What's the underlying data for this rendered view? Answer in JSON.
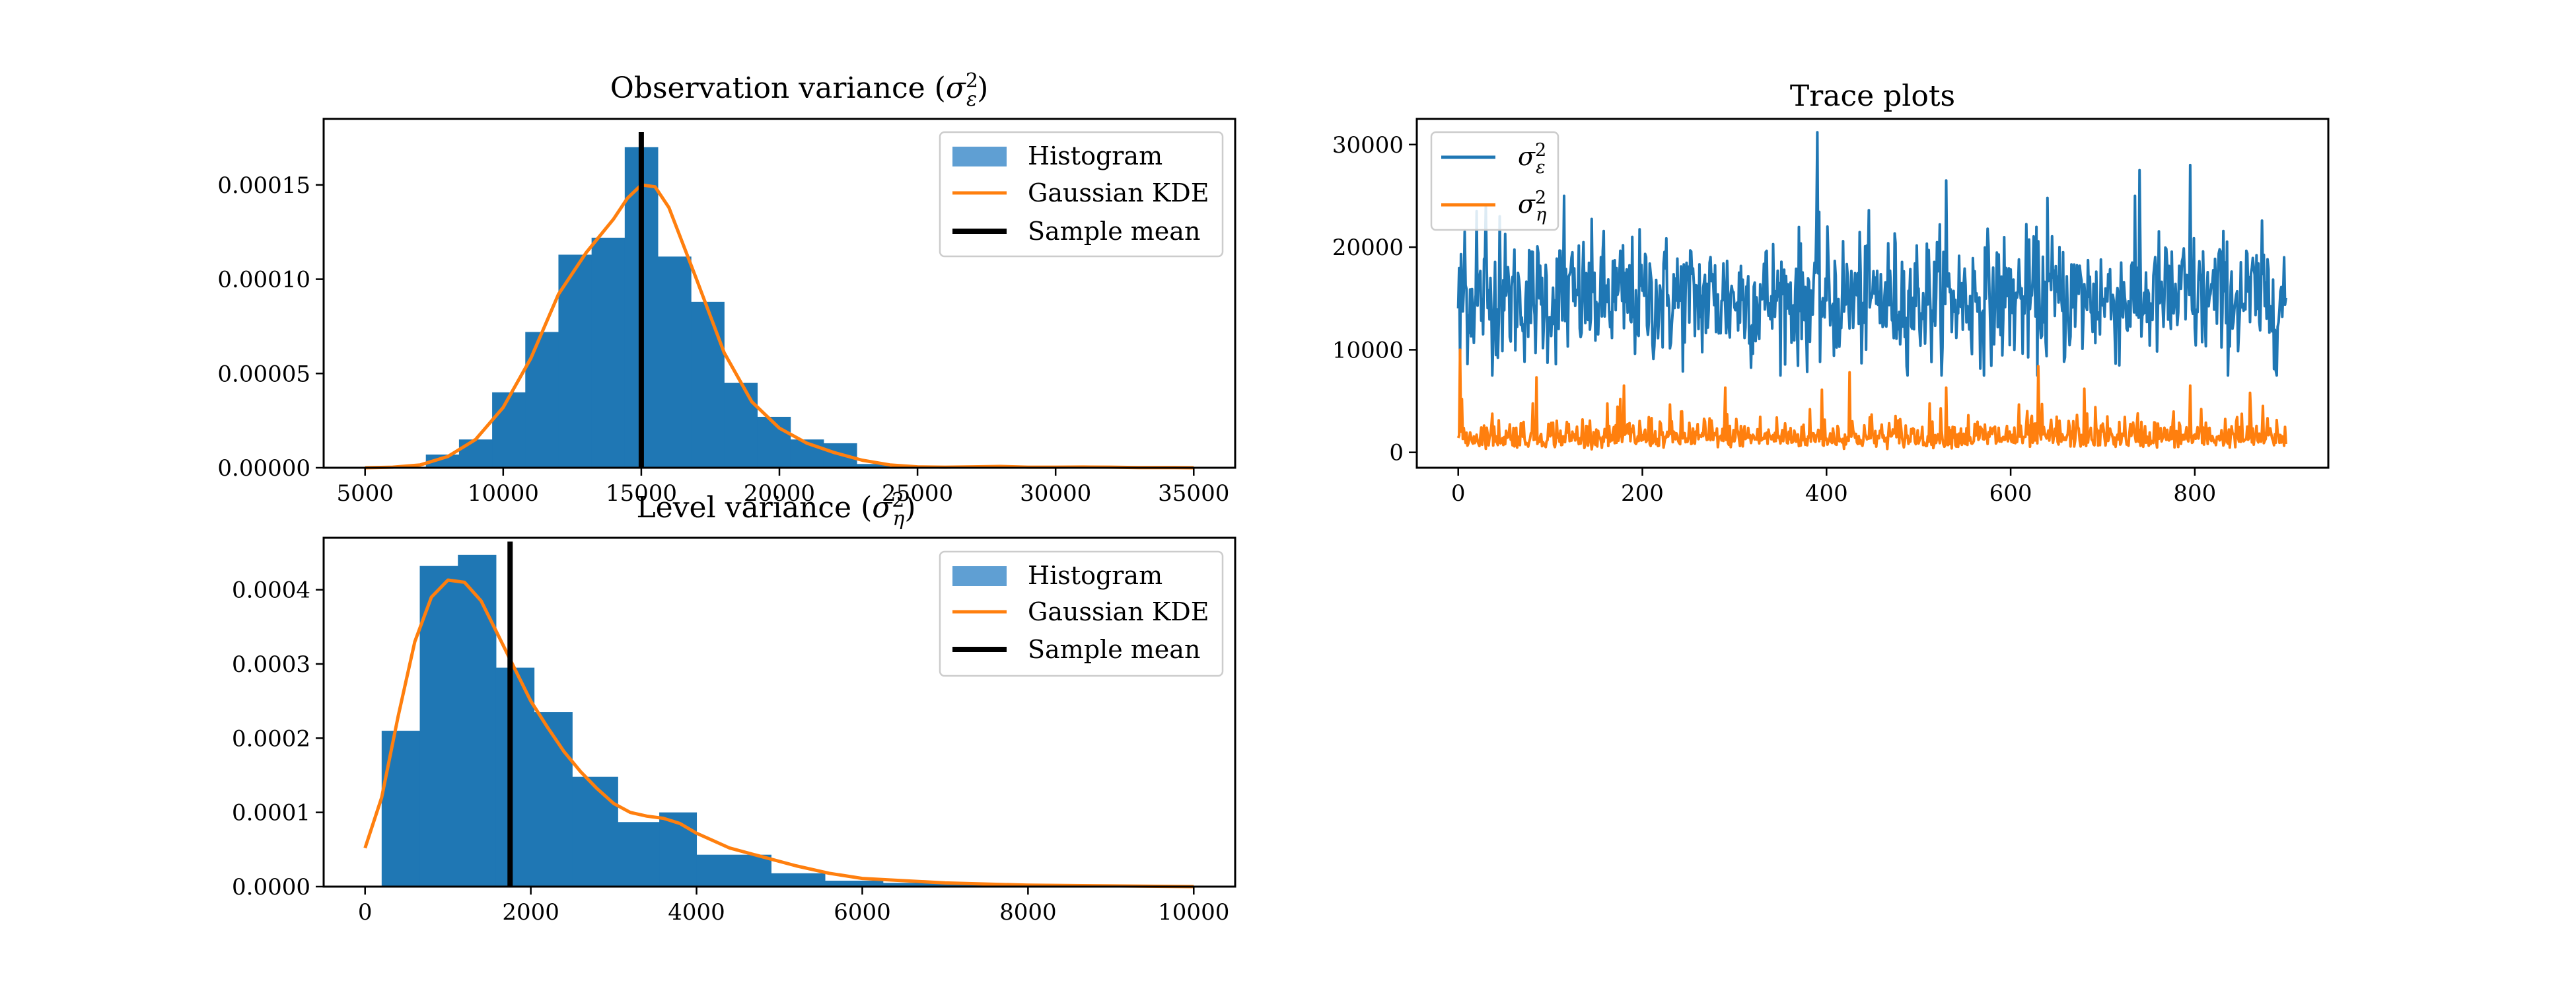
{
  "colors": {
    "hist": "#1f77b4",
    "kde": "#ff7f0e",
    "mean": "#000000",
    "legend_hist": "#5f9fd3"
  },
  "chart_data": [
    {
      "id": "obs",
      "type": "bar",
      "title": "Observation variance (σ²ε)",
      "title_main": "Observation variance (",
      "title_sym": "σ",
      "title_sup": "2",
      "title_sub": "ε",
      "title_end": ")",
      "xlabel": "",
      "ylabel": "",
      "xlim": [
        3500,
        36500
      ],
      "ylim": [
        0,
        0.000185
      ],
      "xticks": [
        5000,
        10000,
        15000,
        20000,
        25000,
        30000,
        35000
      ],
      "xtick_labels": [
        "5000",
        "10000",
        "15000",
        "20000",
        "25000",
        "30000",
        "35000"
      ],
      "yticks": [
        0,
        5e-05,
        0.0001,
        0.00015
      ],
      "ytick_labels": [
        "0.00000",
        "0.00005",
        "0.00010",
        "0.00015"
      ],
      "bins": [
        {
          "x0": 7200,
          "x1": 8400,
          "v": 7e-06
        },
        {
          "x0": 8400,
          "x1": 9600,
          "v": 1.5e-05
        },
        {
          "x0": 9600,
          "x1": 10800,
          "v": 4e-05
        },
        {
          "x0": 10800,
          "x1": 12000,
          "v": 7.2e-05
        },
        {
          "x0": 12000,
          "x1": 13200,
          "v": 0.000113
        },
        {
          "x0": 13200,
          "x1": 14400,
          "v": 0.000122
        },
        {
          "x0": 14400,
          "x1": 15600,
          "v": 0.00017
        },
        {
          "x0": 15600,
          "x1": 16800,
          "v": 0.000112
        },
        {
          "x0": 16800,
          "x1": 18000,
          "v": 8.8e-05
        },
        {
          "x0": 18000,
          "x1": 19200,
          "v": 4.5e-05
        },
        {
          "x0": 19200,
          "x1": 20400,
          "v": 2.7e-05
        },
        {
          "x0": 20400,
          "x1": 21600,
          "v": 1.5e-05
        },
        {
          "x0": 21600,
          "x1": 22800,
          "v": 1.3e-05
        },
        {
          "x0": 22800,
          "x1": 24000,
          "v": 2e-06
        }
      ],
      "kde": {
        "x": [
          5000,
          6000,
          7000,
          8000,
          9000,
          10000,
          11000,
          12000,
          13000,
          14000,
          14500,
          15000,
          15500,
          16000,
          17000,
          18000,
          19000,
          20000,
          21000,
          22000,
          23000,
          24000,
          25000,
          26000,
          27000,
          28000,
          29000,
          30000,
          31000,
          32000,
          33000,
          34000,
          35000
        ],
        "y": [
          0,
          3e-07,
          1.5e-06,
          6e-06,
          1.5e-05,
          3.2e-05,
          5.8e-05,
          9.2e-05,
          0.000114,
          0.000132,
          0.000143,
          0.00015,
          0.000149,
          0.000138,
          0.0001,
          6.1e-05,
          3.5e-05,
          2.1e-05,
          1.3e-05,
          8e-06,
          4e-06,
          1.5e-06,
          5e-07,
          3e-07,
          5e-07,
          7e-07,
          3e-07,
          3e-07,
          4e-07,
          3e-07,
          1e-07,
          1e-07,
          0
        ]
      },
      "mean": 15000,
      "mean_ymax": 0.000178,
      "legend": [
        "Histogram",
        "Gaussian KDE",
        "Sample mean"
      ]
    },
    {
      "id": "lvl",
      "type": "bar",
      "title": "Level variance (σ²η)",
      "title_main": "Level variance (",
      "title_sym": "σ",
      "title_sup": "2",
      "title_sub": "η",
      "title_end": ")",
      "xlabel": "",
      "ylabel": "",
      "xlim": [
        -500,
        10500
      ],
      "ylim": [
        0,
        0.00047
      ],
      "xticks": [
        0,
        2000,
        4000,
        6000,
        8000,
        10000
      ],
      "xtick_labels": [
        "0",
        "2000",
        "4000",
        "6000",
        "8000",
        "10000"
      ],
      "yticks": [
        0,
        0.0001,
        0.0002,
        0.0003,
        0.0004
      ],
      "ytick_labels": [
        "0.0000",
        "0.0001",
        "0.0002",
        "0.0003",
        "0.0004"
      ],
      "bins": [
        {
          "x0": 200,
          "x1": 660,
          "v": 0.00021
        },
        {
          "x0": 660,
          "x1": 1120,
          "v": 0.000432
        },
        {
          "x0": 1120,
          "x1": 1580,
          "v": 0.000447
        },
        {
          "x0": 1580,
          "x1": 2040,
          "v": 0.000295
        },
        {
          "x0": 2040,
          "x1": 2500,
          "v": 0.000235
        },
        {
          "x0": 2500,
          "x1": 3050,
          "v": 0.000148
        },
        {
          "x0": 3050,
          "x1": 3550,
          "v": 8.7e-05
        },
        {
          "x0": 3550,
          "x1": 4000,
          "v": 0.0001
        },
        {
          "x0": 4000,
          "x1": 4900,
          "v": 4.3e-05
        },
        {
          "x0": 4900,
          "x1": 5550,
          "v": 1.8e-05
        },
        {
          "x0": 5550,
          "x1": 6250,
          "v": 8e-06
        },
        {
          "x0": 6250,
          "x1": 7000,
          "v": 5e-06
        },
        {
          "x0": 7000,
          "x1": 7800,
          "v": 4e-06
        }
      ],
      "kde": {
        "x": [
          0,
          200,
          400,
          600,
          800,
          1000,
          1200,
          1400,
          1600,
          1800,
          2000,
          2200,
          2400,
          2600,
          2800,
          3000,
          3200,
          3400,
          3600,
          3800,
          4000,
          4400,
          4800,
          5200,
          5600,
          6000,
          7000,
          8000,
          9000,
          10000
        ],
        "y": [
          5.2e-05,
          0.00012,
          0.00023,
          0.00033,
          0.00039,
          0.000413,
          0.00041,
          0.000385,
          0.00034,
          0.000295,
          0.00025,
          0.000215,
          0.000182,
          0.000155,
          0.000132,
          0.000112,
          0.0001,
          9.5e-05,
          9.2e-05,
          8.5e-05,
          7.2e-05,
          5.2e-05,
          4e-05,
          2.8e-05,
          1.8e-05,
          1.1e-05,
          5e-06,
          2e-06,
          1e-06,
          0
        ]
      },
      "mean": 1750,
      "mean_ymax": 0.000465,
      "legend": [
        "Histogram",
        "Gaussian KDE",
        "Sample mean"
      ]
    },
    {
      "id": "trace",
      "type": "line",
      "title": "Trace plots",
      "xlabel": "",
      "ylabel": "",
      "xlim": [
        -45,
        945
      ],
      "ylim": [
        -1500,
        32500
      ],
      "xticks": [
        0,
        200,
        400,
        600,
        800
      ],
      "xtick_labels": [
        "0",
        "200",
        "400",
        "600",
        "800"
      ],
      "yticks": [
        0,
        10000,
        20000,
        30000
      ],
      "ytick_labels": [
        "0",
        "10000",
        "20000",
        "30000"
      ],
      "n_samples": 900,
      "series": [
        {
          "name_sym": "σ",
          "name_sup": "2",
          "name_sub": "ε",
          "mean": 15000,
          "sd": 3100,
          "min": 7500,
          "max": 25000,
          "spikes": [
            [
              390,
              31200
            ],
            [
              795,
              28000
            ],
            [
              740,
              27500
            ],
            [
              530,
              26500
            ],
            [
              115,
              25000
            ],
            [
              640,
              24800
            ],
            [
              30,
              24000
            ],
            [
              20,
              23500
            ],
            [
              45,
              23000
            ],
            [
              7,
              21500
            ],
            [
              2,
              9000
            ]
          ]
        },
        {
          "name_sym": "σ",
          "name_sup": "2",
          "name_sub": "η",
          "mean": 1700,
          "sd": 950,
          "min": 300,
          "max": 5200,
          "spikes": [
            [
              2,
              10000
            ],
            [
              4,
              5200
            ],
            [
              85,
              7300
            ],
            [
              630,
              8400
            ],
            [
              425,
              7800
            ],
            [
              795,
              6500
            ],
            [
              180,
              6500
            ],
            [
              290,
              6300
            ],
            [
              530,
              6300
            ],
            [
              395,
              6100
            ],
            [
              680,
              6200
            ],
            [
              860,
              5800
            ]
          ]
        }
      ]
    }
  ]
}
